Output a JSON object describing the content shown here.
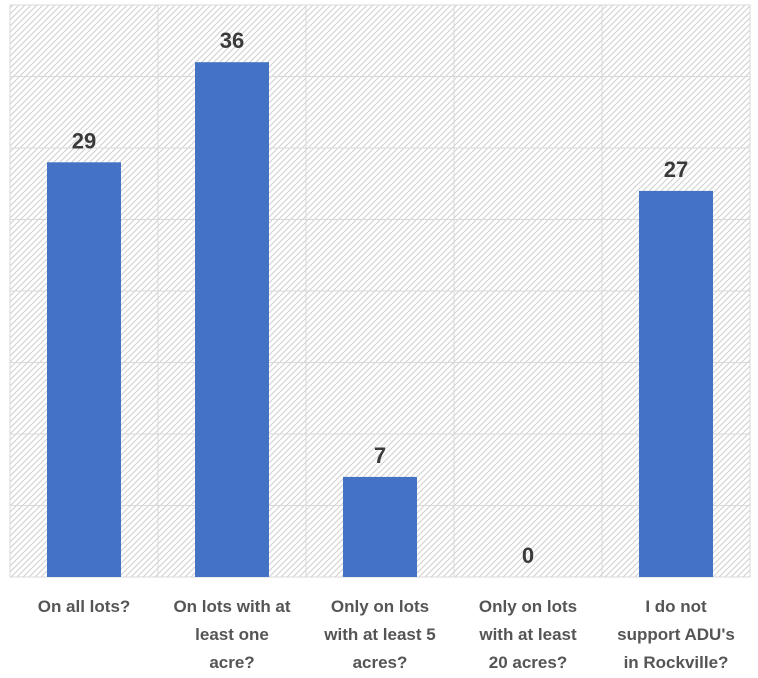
{
  "chart_data": {
    "type": "bar",
    "categories": [
      [
        "On all lots?"
      ],
      [
        "On lots with at",
        "least one",
        "acre?"
      ],
      [
        "Only on lots",
        "with at least 5",
        "acres?"
      ],
      [
        "Only on lots",
        "with at least",
        "20 acres?"
      ],
      [
        "I do not",
        "support ADU's",
        "in Rockville?"
      ]
    ],
    "values": [
      29,
      36,
      7,
      0,
      27
    ],
    "data_labels": [
      "29",
      "36",
      "7",
      "0",
      "27"
    ],
    "title": "",
    "xlabel": "",
    "ylabel": "",
    "ylim": [
      0,
      40
    ],
    "gridlines": true,
    "grid_step": 5,
    "legend": "none",
    "colors": {
      "bar": "#4472C4",
      "grid": "#d9d9d9",
      "hatch": "#cfcfcf",
      "data_label": "#3a3a3a",
      "category_label": "#555555"
    }
  }
}
